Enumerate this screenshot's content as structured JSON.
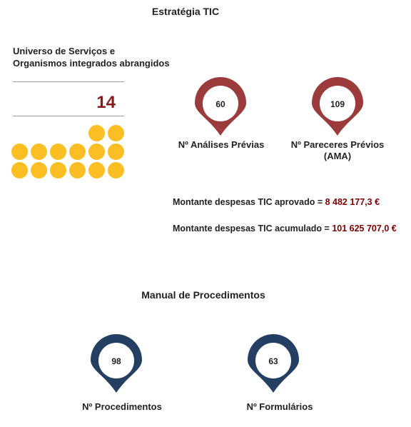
{
  "colors": {
    "accent_red": "#8b1a1a",
    "pin_red": "#9b3b3b",
    "pin_blue": "#243f62",
    "dot_yellow": "#fbbf24",
    "rule_gray": "#9a9a9a"
  },
  "tic": {
    "title": "Estratégia TIC",
    "universe": {
      "label_line1": "Universo de Serviços e",
      "label_line2": "Organismos integrados abrangidos",
      "count": "14",
      "dot_count": 14
    },
    "pins": [
      {
        "value": "60",
        "caption_line1": "Nº Análises Prévias",
        "caption_line2": ""
      },
      {
        "value": "109",
        "caption_line1": "Nº Pareceres Prévios",
        "caption_line2": "(AMA)"
      }
    ],
    "spending": [
      {
        "label": "Montante despesas TIC aprovado = ",
        "value": "8 482 177,3 €"
      },
      {
        "label": "Montante despesas TIC acumulado = ",
        "value": "101 625 707,0 €"
      }
    ]
  },
  "manual": {
    "title": "Manual de Procedimentos",
    "pins": [
      {
        "value": "98",
        "caption": "Nº Procedimentos"
      },
      {
        "value": "63",
        "caption": "Nº Formulários"
      }
    ]
  }
}
